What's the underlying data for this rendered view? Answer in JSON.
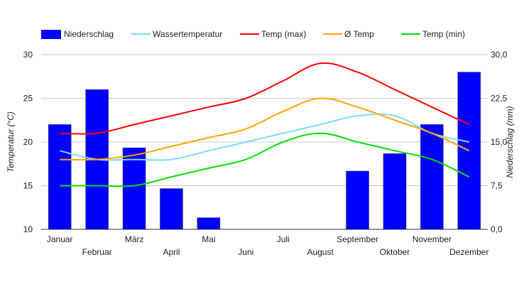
{
  "chart_data": {
    "type": "bar+line",
    "categories": [
      "Januar",
      "Februar",
      "März",
      "April",
      "Mai",
      "Juni",
      "Juli",
      "August",
      "September",
      "Oktober",
      "November",
      "Dezember"
    ],
    "y_left": {
      "label": "Temperatur (°C)",
      "range": [
        10,
        30
      ],
      "ticks": [
        "10",
        "15",
        "20",
        "25",
        "30"
      ]
    },
    "y_right": {
      "label": "Niederschlag (mm)",
      "range": [
        0,
        30
      ],
      "ticks": [
        "0,0",
        "7,5",
        "15,0",
        "22,5",
        "30,0"
      ]
    },
    "bars": {
      "name": "Niederschlag",
      "color": "#0000ff",
      "axis": "right",
      "values": [
        18,
        24,
        14,
        7,
        2,
        0,
        0,
        0,
        10,
        13,
        18,
        27
      ]
    },
    "series": [
      {
        "name": "Wassertemperatur",
        "color": "#80d8ff",
        "values": [
          19,
          18,
          18,
          18,
          19,
          20,
          21,
          22,
          23,
          23,
          21,
          20
        ]
      },
      {
        "name": "Temp (max)",
        "color": "#ff0000",
        "values": [
          21,
          21,
          22,
          23,
          24,
          25,
          27,
          29,
          28,
          26,
          24,
          22
        ]
      },
      {
        "name": "Ø Temp",
        "color": "#ffa500",
        "values": [
          18,
          18,
          18.5,
          19.5,
          20.5,
          21.5,
          23.5,
          25,
          24,
          22.5,
          21,
          19
        ]
      },
      {
        "name": "Temp (min)",
        "color": "#00e000",
        "values": [
          15,
          15,
          15,
          16,
          17,
          18,
          20,
          21,
          20,
          19,
          18,
          16
        ]
      }
    ],
    "grid": true,
    "legend": "top-left"
  }
}
